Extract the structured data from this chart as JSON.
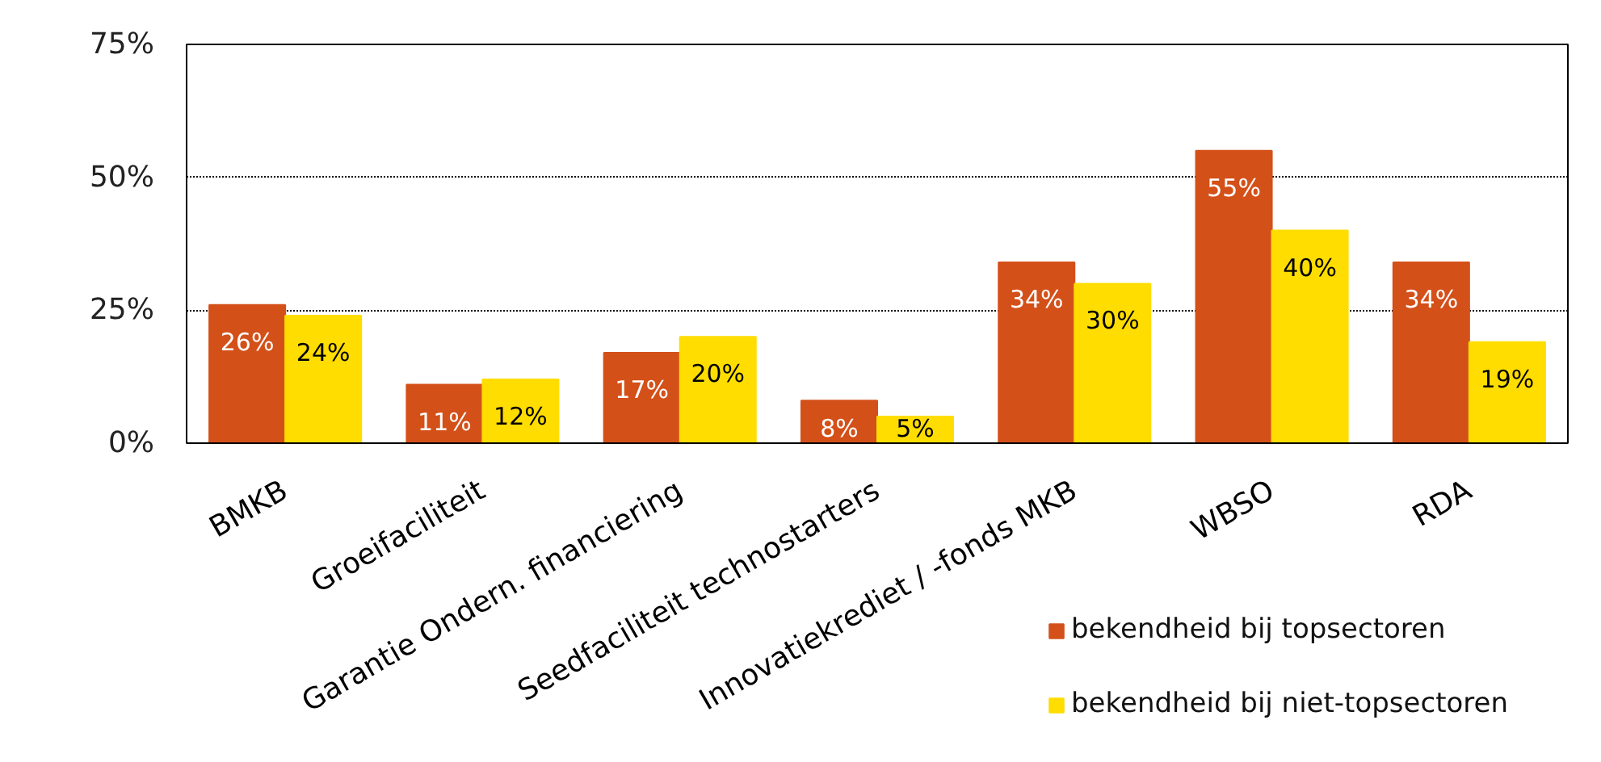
{
  "chart_data": {
    "type": "bar",
    "categories": [
      "BMKB",
      "Groeifaciliteit",
      "Garantie Ondern. financiering",
      "Seedfaciliteit technostarters",
      "Innovatiekrediet / -fonds MKB",
      "WBSO",
      "RDA"
    ],
    "series": [
      {
        "name": "bekendheid bij topsectoren",
        "color": "#d45019",
        "values": [
          26,
          11,
          17,
          8,
          34,
          55,
          34
        ],
        "value_labels": [
          "26%",
          "11%",
          "17%",
          "8%",
          "34%",
          "55%",
          "34%"
        ]
      },
      {
        "name": "bekendheid bij niet-topsectoren",
        "color": "#ffdd00",
        "values": [
          24,
          12,
          20,
          5,
          30,
          40,
          19
        ],
        "value_labels": [
          "24%",
          "12%",
          "20%",
          "5%",
          "30%",
          "40%",
          "19%"
        ]
      }
    ],
    "ylim": [
      0,
      75
    ],
    "yticks": [
      {
        "value": 0,
        "label": "0%"
      },
      {
        "value": 25,
        "label": "25%"
      },
      {
        "value": 50,
        "label": "50%"
      },
      {
        "value": 75,
        "label": "75%"
      }
    ],
    "grid": "y",
    "legend": "bottom right"
  }
}
